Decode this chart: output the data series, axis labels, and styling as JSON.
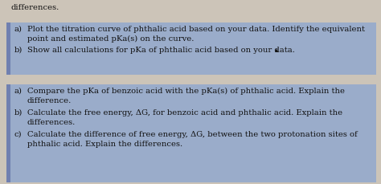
{
  "background_color": "#ccc4b8",
  "top_text": "differences.",
  "block1_items": [
    {
      "label": "a)",
      "lines": [
        "Plot the titration curve of phthalic acid based on your data. Identify the equivalent",
        "   point and estimated pKa(s) on the curve."
      ]
    },
    {
      "label": "b)",
      "lines": [
        "Show all calculations for pKa of phthalic acid based on your data.  ▲"
      ],
      "is_last": true
    }
  ],
  "block2_items": [
    {
      "label": "a)",
      "lines": [
        "Compare the pKa of benzoic acid with the pKa(s) of phthalic acid. Explain the",
        "   difference."
      ]
    },
    {
      "label": "b)",
      "lines": [
        "Calculate the free energy, ΔG, for benzoic acid and phthalic acid. Explain the",
        "   differences."
      ]
    },
    {
      "label": "c)",
      "lines": [
        "Calculate the difference of free energy, ΔG, between the two protonation sites of",
        "   phthalic acid. Explain the differences."
      ]
    }
  ],
  "box_color": "#9aacca",
  "accent_color": "#7080b0",
  "text_color": "#111111",
  "font_size": 7.2,
  "figwidth": 4.74,
  "figheight": 2.29,
  "dpi": 100
}
